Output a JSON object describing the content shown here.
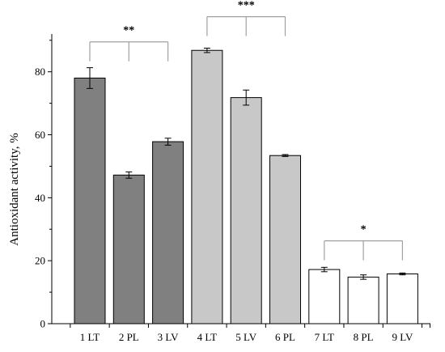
{
  "chart_data": {
    "type": "bar",
    "title": "",
    "xlabel": "",
    "ylabel": "Antioxidant activity, %",
    "ylim": [
      0,
      92
    ],
    "yticks": [
      0,
      20,
      40,
      60,
      80
    ],
    "grid": false,
    "legend": "none",
    "categories": [
      "1 LT",
      "2 PL",
      "3 LV",
      "4 LT",
      "5 LV",
      "6 PL",
      "7 LT",
      "8 PL",
      "9 LV"
    ],
    "values": [
      78.0,
      47.2,
      57.8,
      86.8,
      71.8,
      53.4,
      17.2,
      14.8,
      15.8
    ],
    "errors": [
      3.3,
      1.0,
      1.1,
      0.7,
      2.4,
      0.3,
      0.7,
      0.7,
      0.3
    ],
    "groups": [
      {
        "bars": [
          0,
          1,
          2
        ],
        "fill": "#808080",
        "significance": "**",
        "bracket_y": 89.5
      },
      {
        "bars": [
          3,
          4,
          5
        ],
        "fill": "#c8c8c8",
        "significance": "***",
        "bracket_y": 97.5
      },
      {
        "bars": [
          6,
          7,
          8
        ],
        "fill": "#ffffff",
        "significance": "*",
        "bracket_y": 26.3
      }
    ],
    "bracket_color": "#a0a0a0"
  }
}
